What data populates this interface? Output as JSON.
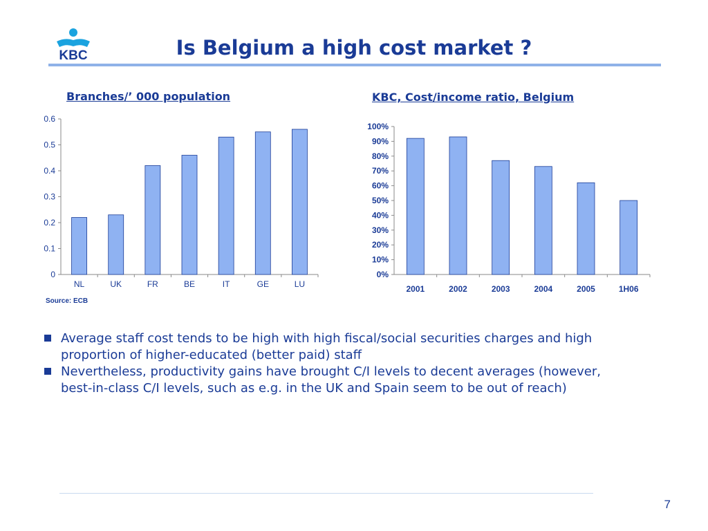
{
  "slide": {
    "title": "Is Belgium a high cost market ?",
    "logo_text": "KBC",
    "page_number": "7",
    "source": "Source: ECB",
    "bullets": [
      "Average staff cost tends to be high with high fiscal/social securities charges and high proportion of higher-educated (better paid) staff",
      "Nevertheless, productivity gains have brought C/I levels to decent averages (however, best-in-class C/I levels, such as e.g. in the UK and Spain seem to be out  of reach)"
    ],
    "colors": {
      "title": "#1a3b96",
      "bar_fill": "#8fb2f2",
      "bar_stroke": "#1a3b96",
      "rule": "#8fb2e8"
    }
  },
  "chart_data": [
    {
      "type": "bar",
      "title": "Branches/’ 000 population",
      "categories": [
        "NL",
        "UK",
        "FR",
        "BE",
        "IT",
        "GE",
        "LU"
      ],
      "values": [
        0.22,
        0.23,
        0.42,
        0.46,
        0.53,
        0.55,
        0.56
      ],
      "ylim": [
        0,
        0.6
      ],
      "yticks": [
        "0",
        "0.1",
        "0.2",
        "0.3",
        "0.4",
        "0.5",
        "0.6"
      ],
      "grid": false,
      "legend": "none"
    },
    {
      "type": "bar",
      "title": "KBC, Cost/income ratio, Belgium",
      "categories": [
        "2001",
        "2002",
        "2003",
        "2004",
        "2005",
        "1H06"
      ],
      "values": [
        92,
        93,
        77,
        73,
        62,
        50
      ],
      "ylim": [
        0,
        100
      ],
      "yticks": [
        "0%",
        "10%",
        "20%",
        "30%",
        "40%",
        "50%",
        "60%",
        "70%",
        "80%",
        "90%",
        "100%"
      ],
      "grid": false,
      "legend": "none"
    }
  ]
}
